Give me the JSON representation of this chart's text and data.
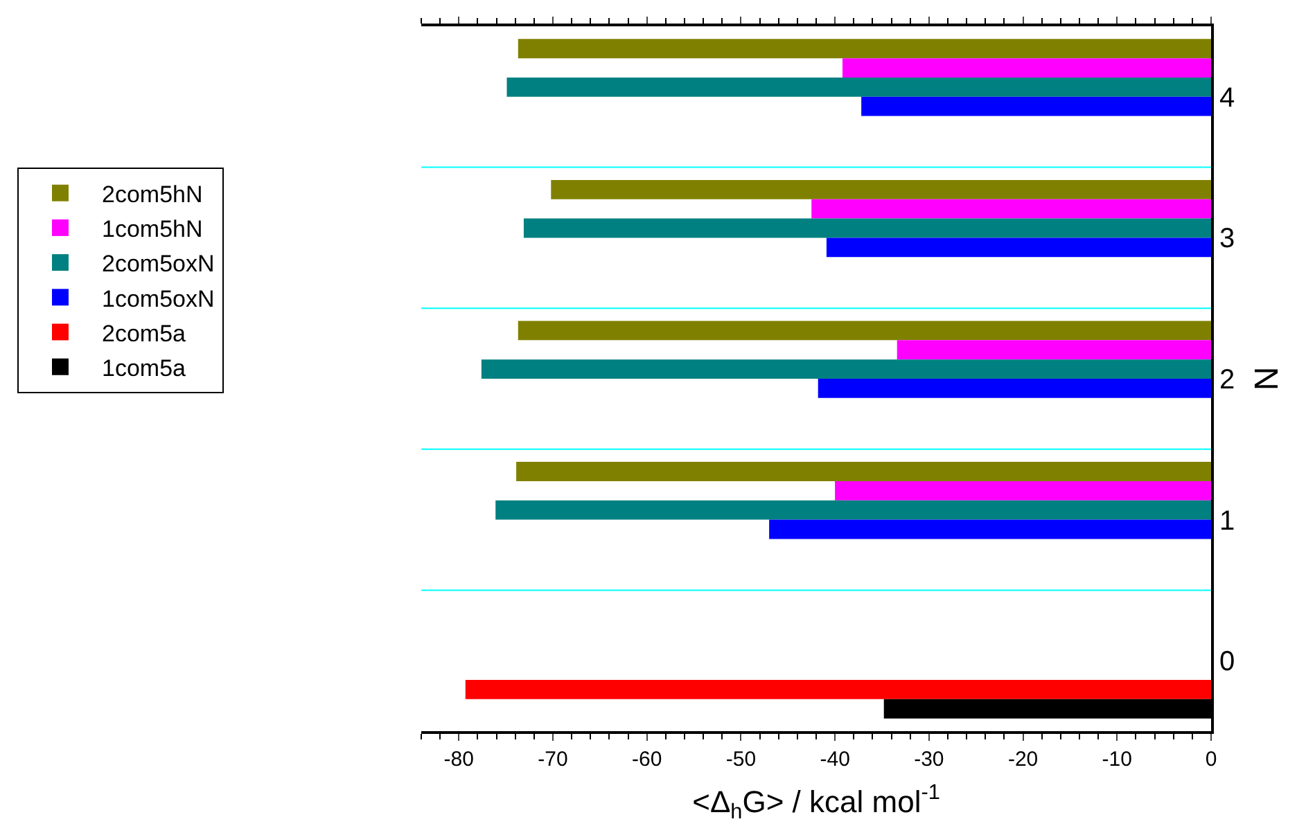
{
  "chart_data": {
    "type": "bar",
    "orientation": "horizontal",
    "xlabel": "<Δ$_{h}$G> / kcal mol$^{-1}$",
    "ylabel": "N",
    "categories": [
      "4",
      "3",
      "2",
      "1",
      "0"
    ],
    "series": [
      {
        "name": "2com5hN",
        "color": "#808000",
        "values": [
          -73.7,
          -70.2,
          -73.7,
          -73.9,
          null
        ]
      },
      {
        "name": "1com5hN",
        "color": "#ff00ff",
        "values": [
          -39.2,
          -42.5,
          -33.4,
          -40.0,
          null
        ]
      },
      {
        "name": "2com5oxN",
        "color": "#008080",
        "values": [
          -74.9,
          -73.1,
          -77.6,
          -76.1,
          null
        ]
      },
      {
        "name": "1com5oxN",
        "color": "#0000ff",
        "values": [
          -37.2,
          -40.9,
          -41.8,
          -47.0,
          null
        ]
      },
      {
        "name": "2com5a",
        "color": "#ff0000",
        "values": [
          null,
          null,
          null,
          null,
          -79.3
        ]
      },
      {
        "name": "1com5a",
        "color": "#000000",
        "values": [
          null,
          null,
          null,
          null,
          -34.8
        ]
      }
    ],
    "xlim": [
      -84,
      0
    ],
    "xticks": [
      -80,
      -70,
      -60,
      -50,
      -40,
      -30,
      -20,
      -10,
      0
    ],
    "grid": "y",
    "legend": "left"
  }
}
